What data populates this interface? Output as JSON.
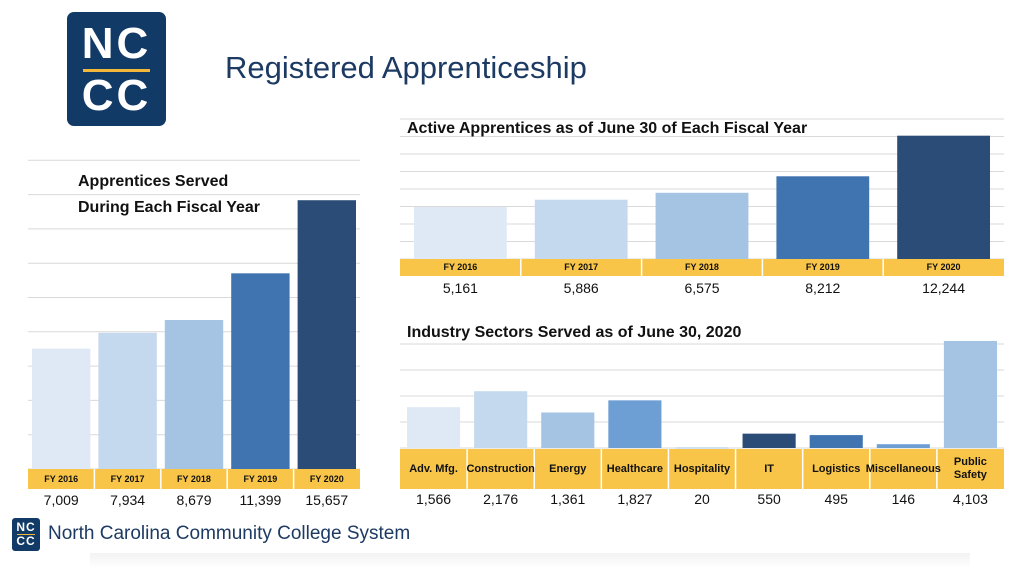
{
  "header": {
    "logo_line1": "NC",
    "logo_line2": "CC",
    "title": "Registered Apprenticeship"
  },
  "footer": {
    "logo_line1": "NC",
    "logo_line2": "CC",
    "text": "North Carolina Community College System"
  },
  "colors": {
    "navy": "#123a66",
    "gold": "#f8c548",
    "bar_shades": [
      "#dfe9f5",
      "#c4d8ee",
      "#a5c3e3",
      "#3f74b1",
      "#2a4c76"
    ]
  },
  "chart_data": [
    {
      "type": "bar",
      "title_line1": "Apprentices Served",
      "title_line2": "During Each Fiscal Year",
      "categories": [
        "FY 2016",
        "FY 2017",
        "FY 2018",
        "FY 2019",
        "FY 2020"
      ],
      "values": [
        7009,
        7934,
        8679,
        11399,
        15657
      ],
      "value_labels": [
        "7,009",
        "7,934",
        "8,679",
        "11,399",
        "15,657"
      ],
      "ylim": [
        0,
        18000
      ],
      "grid": true,
      "bar_colors": [
        "#dfe9f5",
        "#c4d8ee",
        "#a5c3e3",
        "#3f74b1",
        "#2a4c76"
      ]
    },
    {
      "type": "bar",
      "title": "Active Apprentices as of June 30 of Each Fiscal Year",
      "categories": [
        "FY 2016",
        "FY 2017",
        "FY 2018",
        "FY 2019",
        "FY 2020"
      ],
      "values": [
        5161,
        5886,
        6575,
        8212,
        12244
      ],
      "value_labels": [
        "5,161",
        "5,886",
        "6,575",
        "8,212",
        "12,244"
      ],
      "ylim": [
        0,
        14000
      ],
      "grid": true,
      "bar_colors": [
        "#dfe9f5",
        "#c4d8ee",
        "#a5c3e3",
        "#3f74b1",
        "#2a4c76"
      ]
    },
    {
      "type": "bar",
      "title": "Industry Sectors Served as of June 30, 2020",
      "categories": [
        "Adv. Mfg.",
        "Construction",
        "Energy",
        "Healthcare",
        "Hospitality",
        "IT",
        "Logistics",
        "Miscellaneous",
        "Public Safety"
      ],
      "values": [
        1566,
        2176,
        1361,
        1827,
        20,
        550,
        495,
        146,
        4103
      ],
      "value_labels": [
        "1,566",
        "2,176",
        "1,361",
        "1,827",
        "20",
        "550",
        "495",
        "146",
        "4,103"
      ],
      "ylim": [
        0,
        4600
      ],
      "grid": true,
      "bar_colors": [
        "#dfe9f5",
        "#c4d8ee",
        "#a5c3e3",
        "#6e9fd4",
        "#a5c3e3",
        "#2a4c76",
        "#3f74b1",
        "#6e9fd4",
        "#a5c3e3"
      ]
    }
  ]
}
